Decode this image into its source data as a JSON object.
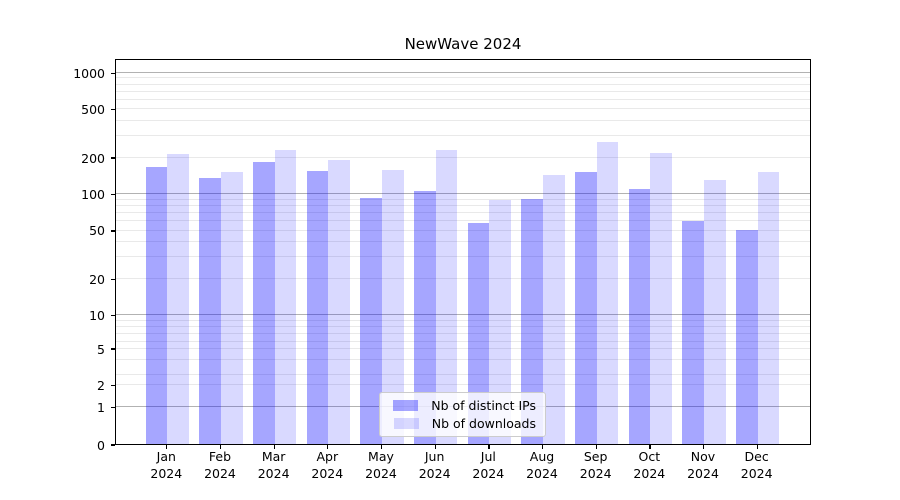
{
  "figure": {
    "title": "NewWave 2024",
    "background_color": "#ffffff"
  },
  "chart_data": {
    "type": "bar",
    "title": "NewWave 2024",
    "months": [
      "Jan",
      "Feb",
      "Mar",
      "Apr",
      "May",
      "Jun",
      "Jul",
      "Aug",
      "Sep",
      "Oct",
      "Nov",
      "Dec"
    ],
    "year": "2024",
    "x_tick_labels": [
      "Jan 2024",
      "Feb 2024",
      "Mar 2024",
      "Apr 2024",
      "May 2024",
      "Jun 2024",
      "Jul 2024",
      "Aug 2024",
      "Sep 2024",
      "Oct 2024",
      "Nov 2024",
      "Dec 2024"
    ],
    "series": [
      {
        "name": "Nb of distinct IPs",
        "color": "rgba(0,0,255,0.35)",
        "values": [
          165,
          135,
          182,
          153,
          92,
          105,
          57,
          90,
          152,
          108,
          59,
          50
        ]
      },
      {
        "name": "Nb of downloads",
        "color": "rgba(0,0,255,0.15)",
        "values": [
          213,
          150,
          229,
          188,
          157,
          229,
          88,
          142,
          268,
          216,
          130,
          151
        ]
      }
    ],
    "yscale": "symlog",
    "yticks": [
      0,
      1,
      2,
      5,
      10,
      20,
      50,
      100,
      200,
      500,
      1000
    ],
    "ylim": [
      0,
      1300
    ],
    "grid": "both",
    "legend_position": "lower center (inside axes)",
    "colors": {
      "grid_major": "#b2b2b2",
      "grid_minor": "#e9e9e9",
      "spine": "#000000"
    }
  }
}
